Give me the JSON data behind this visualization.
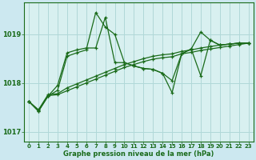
{
  "title": "Graphe pression niveau de la mer (hPa)",
  "bg_color": "#cce8f0",
  "plot_bg_color": "#d8f0f0",
  "grid_color": "#b0d8d8",
  "line_color": "#1a6b1a",
  "ylim": [
    1016.8,
    1019.65
  ],
  "yticks": [
    1017,
    1018,
    1019
  ],
  "xlim": [
    -0.5,
    23.5
  ],
  "xticks": [
    0,
    1,
    2,
    3,
    4,
    5,
    6,
    7,
    8,
    9,
    10,
    11,
    12,
    13,
    14,
    15,
    16,
    17,
    18,
    19,
    20,
    21,
    22,
    23
  ],
  "series": [
    [
      1017.62,
      1017.42,
      1017.73,
      1017.85,
      1018.55,
      1018.62,
      1018.68,
      1019.45,
      1019.15,
      1019.0,
      1018.42,
      1018.35,
      1018.3,
      1018.28,
      1018.2,
      1018.05,
      1018.6,
      1018.7,
      1019.05,
      1018.88,
      1018.78,
      1018.8,
      1018.82,
      1018.82
    ],
    [
      1017.62,
      1017.42,
      1017.73,
      1017.95,
      1018.62,
      1018.68,
      1018.72,
      1018.72,
      1019.35,
      1018.42,
      1018.42,
      1018.35,
      1018.3,
      1018.28,
      1018.2,
      1017.8,
      1018.6,
      1018.7,
      1018.15,
      1018.88,
      1018.78,
      1018.8,
      1018.82,
      1018.82
    ],
    [
      1017.62,
      1017.45,
      1017.76,
      1017.78,
      1017.9,
      1017.98,
      1018.06,
      1018.14,
      1018.22,
      1018.3,
      1018.38,
      1018.44,
      1018.5,
      1018.55,
      1018.58,
      1018.6,
      1018.65,
      1018.68,
      1018.72,
      1018.75,
      1018.78,
      1018.8,
      1018.82,
      1018.82
    ],
    [
      1017.62,
      1017.43,
      1017.74,
      1017.76,
      1017.84,
      1017.92,
      1018.0,
      1018.08,
      1018.16,
      1018.24,
      1018.32,
      1018.38,
      1018.44,
      1018.49,
      1018.52,
      1018.54,
      1018.6,
      1018.63,
      1018.67,
      1018.7,
      1018.73,
      1018.76,
      1018.79,
      1018.82
    ]
  ],
  "marker": "D",
  "markersize": 3,
  "linewidth": 0.9
}
